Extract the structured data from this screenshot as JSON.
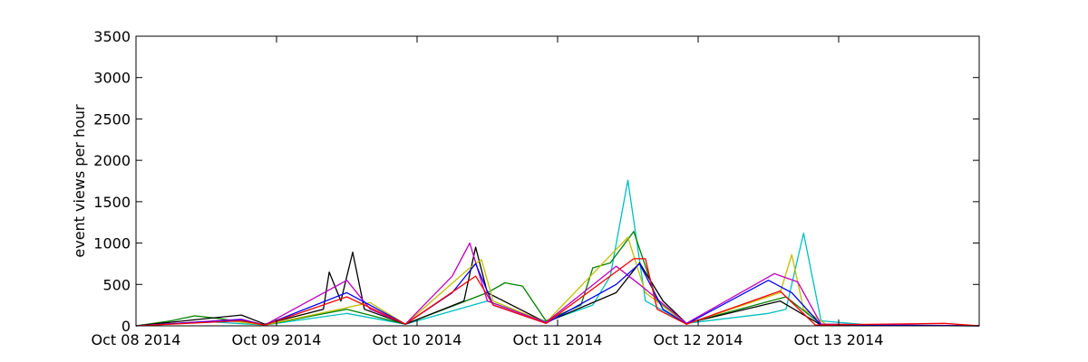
{
  "chart_data": {
    "type": "line",
    "title": "",
    "xlabel": "",
    "ylabel": "event views per hour",
    "ylim": [
      0,
      3500
    ],
    "xlim": [
      "2014-10-08 00:00",
      "2014-10-14 00:00"
    ],
    "y_ticks": [
      "0",
      "500",
      "1000",
      "1500",
      "2000",
      "2500",
      "3000",
      "3500"
    ],
    "x_ticks": [
      "Oct 08 2014",
      "Oct 09 2014",
      "Oct 10 2014",
      "Oct 11 2014",
      "Oct 12 2014",
      "Oct 13 2014"
    ],
    "x_tick_dates": [
      "2014-10-08 00:00",
      "2014-10-09 00:00",
      "2014-10-10 00:00",
      "2014-10-11 00:00",
      "2014-10-12 00:00",
      "2014-10-13 00:00"
    ],
    "grid": false,
    "legend": "none",
    "series_colors": [
      "#008000",
      "#000000",
      "#00bfbf",
      "#bfbf00",
      "#bf00bf",
      "#0000ff",
      "#ff0000"
    ],
    "series": [
      {
        "color": "#00bfbf",
        "points": [
          [
            "2014-10-08 00:00",
            0
          ],
          [
            "2014-10-08 12:00",
            50
          ],
          [
            "2014-10-08 22:00",
            10
          ],
          [
            "2014-10-09 12:00",
            150
          ],
          [
            "2014-10-09 22:00",
            20
          ],
          [
            "2014-10-10 12:00",
            300
          ],
          [
            "2014-10-10 22:00",
            50
          ],
          [
            "2014-10-11 06:00",
            250
          ],
          [
            "2014-10-11 09:00",
            600
          ],
          [
            "2014-10-11 12:00",
            1760
          ],
          [
            "2014-10-11 15:00",
            300
          ],
          [
            "2014-10-11 22:00",
            30
          ],
          [
            "2014-10-12 12:00",
            150
          ],
          [
            "2014-10-12 15:00",
            200
          ],
          [
            "2014-10-12 18:00",
            1120
          ],
          [
            "2014-10-12 21:00",
            60
          ],
          [
            "2014-10-13 06:00",
            5
          ],
          [
            "2014-10-14 00:00",
            0
          ]
        ]
      },
      {
        "color": "#008000",
        "points": [
          [
            "2014-10-08 00:00",
            0
          ],
          [
            "2014-10-08 06:00",
            60
          ],
          [
            "2014-10-08 10:00",
            120
          ],
          [
            "2014-10-08 14:00",
            90
          ],
          [
            "2014-10-08 22:00",
            10
          ],
          [
            "2014-10-09 12:00",
            200
          ],
          [
            "2014-10-09 22:00",
            20
          ],
          [
            "2014-10-10 12:00",
            400
          ],
          [
            "2014-10-10 15:00",
            520
          ],
          [
            "2014-10-10 18:00",
            480
          ],
          [
            "2014-10-10 22:00",
            60
          ],
          [
            "2014-10-11 04:00",
            250
          ],
          [
            "2014-10-11 06:00",
            700
          ],
          [
            "2014-10-11 09:00",
            760
          ],
          [
            "2014-10-11 13:00",
            1140
          ],
          [
            "2014-10-11 17:00",
            300
          ],
          [
            "2014-10-11 22:00",
            30
          ],
          [
            "2014-10-12 15:00",
            350
          ],
          [
            "2014-10-12 21:00",
            20
          ],
          [
            "2014-10-14 00:00",
            0
          ]
        ]
      },
      {
        "color": "#000000",
        "points": [
          [
            "2014-10-08 00:00",
            0
          ],
          [
            "2014-10-08 18:00",
            130
          ],
          [
            "2014-10-08 22:00",
            20
          ],
          [
            "2014-10-09 08:00",
            200
          ],
          [
            "2014-10-09 09:00",
            650
          ],
          [
            "2014-10-09 11:00",
            300
          ],
          [
            "2014-10-09 13:00",
            890
          ],
          [
            "2014-10-09 15:00",
            200
          ],
          [
            "2014-10-09 22:00",
            20
          ],
          [
            "2014-10-10 08:00",
            300
          ],
          [
            "2014-10-10 10:00",
            950
          ],
          [
            "2014-10-10 12:00",
            400
          ],
          [
            "2014-10-10 22:00",
            40
          ],
          [
            "2014-10-11 10:00",
            400
          ],
          [
            "2014-10-11 14:00",
            760
          ],
          [
            "2014-10-11 18:00",
            300
          ],
          [
            "2014-10-11 22:00",
            30
          ],
          [
            "2014-10-12 14:00",
            300
          ],
          [
            "2014-10-12 21:00",
            10
          ],
          [
            "2014-10-14 00:00",
            0
          ]
        ]
      },
      {
        "color": "#bfbf00",
        "points": [
          [
            "2014-10-08 00:00",
            0
          ],
          [
            "2014-10-08 16:00",
            60
          ],
          [
            "2014-10-08 22:00",
            10
          ],
          [
            "2014-10-09 16:00",
            280
          ],
          [
            "2014-10-09 22:00",
            20
          ],
          [
            "2014-10-10 09:00",
            700
          ],
          [
            "2014-10-10 11:00",
            800
          ],
          [
            "2014-10-10 13:00",
            300
          ],
          [
            "2014-10-10 22:00",
            40
          ],
          [
            "2014-10-11 12:00",
            1070
          ],
          [
            "2014-10-11 15:00",
            400
          ],
          [
            "2014-10-11 22:00",
            20
          ],
          [
            "2014-10-12 14:00",
            400
          ],
          [
            "2014-10-12 16:00",
            860
          ],
          [
            "2014-10-12 18:00",
            200
          ],
          [
            "2014-10-12 22:00",
            10
          ],
          [
            "2014-10-14 00:00",
            0
          ]
        ]
      },
      {
        "color": "#bf00bf",
        "points": [
          [
            "2014-10-08 00:00",
            0
          ],
          [
            "2014-10-08 18:00",
            80
          ],
          [
            "2014-10-08 22:00",
            10
          ],
          [
            "2014-10-09 12:00",
            550
          ],
          [
            "2014-10-09 16:00",
            200
          ],
          [
            "2014-10-09 22:00",
            20
          ],
          [
            "2014-10-10 06:00",
            600
          ],
          [
            "2014-10-10 09:00",
            1000
          ],
          [
            "2014-10-10 12:00",
            300
          ],
          [
            "2014-10-10 22:00",
            40
          ],
          [
            "2014-10-11 10:00",
            720
          ],
          [
            "2014-10-11 14:00",
            500
          ],
          [
            "2014-10-11 22:00",
            30
          ],
          [
            "2014-10-12 13:00",
            630
          ],
          [
            "2014-10-12 17:00",
            530
          ],
          [
            "2014-10-12 21:00",
            20
          ],
          [
            "2014-10-14 00:00",
            0
          ]
        ]
      },
      {
        "color": "#0000ff",
        "points": [
          [
            "2014-10-08 00:00",
            0
          ],
          [
            "2014-10-08 18:00",
            70
          ],
          [
            "2014-10-08 22:00",
            10
          ],
          [
            "2014-10-09 12:00",
            400
          ],
          [
            "2014-10-09 22:00",
            20
          ],
          [
            "2014-10-10 06:00",
            400
          ],
          [
            "2014-10-10 10:00",
            750
          ],
          [
            "2014-10-10 13:00",
            250
          ],
          [
            "2014-10-10 22:00",
            30
          ],
          [
            "2014-10-11 10:00",
            500
          ],
          [
            "2014-10-11 14:00",
            750
          ],
          [
            "2014-10-11 18:00",
            200
          ],
          [
            "2014-10-11 22:00",
            20
          ],
          [
            "2014-10-12 12:00",
            550
          ],
          [
            "2014-10-12 16:00",
            400
          ],
          [
            "2014-10-12 21:00",
            10
          ],
          [
            "2014-10-14 00:00",
            0
          ]
        ]
      },
      {
        "color": "#ff0000",
        "points": [
          [
            "2014-10-08 00:00",
            0
          ],
          [
            "2014-10-08 18:00",
            60
          ],
          [
            "2014-10-08 22:00",
            10
          ],
          [
            "2014-10-09 12:00",
            350
          ],
          [
            "2014-10-09 22:00",
            20
          ],
          [
            "2014-10-10 10:00",
            600
          ],
          [
            "2014-10-10 13:00",
            250
          ],
          [
            "2014-10-10 22:00",
            30
          ],
          [
            "2014-10-11 13:00",
            810
          ],
          [
            "2014-10-11 15:00",
            810
          ],
          [
            "2014-10-11 17:00",
            200
          ],
          [
            "2014-10-11 22:00",
            20
          ],
          [
            "2014-10-12 14:00",
            420
          ],
          [
            "2014-10-12 20:00",
            10
          ],
          [
            "2014-10-13 18:00",
            30
          ],
          [
            "2014-10-14 00:00",
            0
          ]
        ]
      }
    ]
  }
}
